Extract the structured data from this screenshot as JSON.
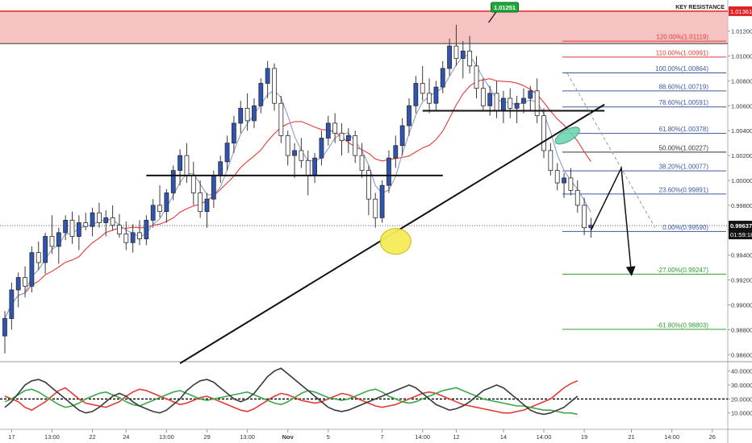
{
  "chart_data": {
    "type": "candlestick",
    "title": "",
    "key_resistance": {
      "label": "KEY RESISTANCE",
      "lower": 1.011,
      "upper": 1.0136,
      "price_label": "1.01361"
    },
    "peak_callout": {
      "value": "1.01251",
      "price": 1.01251
    },
    "current_price": {
      "value": "0.99637",
      "price": 0.99637
    },
    "countdown": "01:59:18",
    "y_axis": {
      "ylim": [
        0.9855,
        1.0145
      ],
      "ticks": [
        "1.01200",
        "1.01000",
        "1.00800",
        "1.00600",
        "1.00400",
        "1.00200",
        "1.00000",
        "0.99800",
        "0.99600",
        "0.99400",
        "0.99200",
        "0.99000",
        "0.98800",
        "0.98600"
      ]
    },
    "x_axis": {
      "ticks": [
        {
          "label": "17",
          "i": 1
        },
        {
          "label": "13:00",
          "i": 7
        },
        {
          "label": "22",
          "i": 13
        },
        {
          "label": "24",
          "i": 18
        },
        {
          "label": "13:00",
          "i": 24
        },
        {
          "label": "29",
          "i": 30
        },
        {
          "label": "13:00",
          "i": 36
        },
        {
          "label": "Nov",
          "i": 42
        },
        {
          "label": "5",
          "i": 48
        },
        {
          "label": "7",
          "i": 56
        },
        {
          "label": "14:00",
          "i": 62
        },
        {
          "label": "12",
          "i": 67
        },
        {
          "label": "14",
          "i": 74
        },
        {
          "label": "14:00",
          "i": 80
        },
        {
          "label": "19",
          "i": 86
        },
        {
          "label": "21",
          "i": 93
        },
        {
          "label": "14:00",
          "i": 99
        },
        {
          "label": "26",
          "i": 105
        }
      ]
    },
    "fibonacci": [
      {
        "label": "120.00%(1.01119)",
        "price": 1.01119,
        "color": "#e53935"
      },
      {
        "label": "110.00%(1.00991)",
        "price": 1.00991,
        "color": "#e53935"
      },
      {
        "label": "100.00%(1.00864)",
        "price": 1.00864,
        "color": "#3d5a9a"
      },
      {
        "label": "88.60%(1.00719)",
        "price": 1.00719,
        "color": "#3d5a9a"
      },
      {
        "label": "78.60%(1.00591)",
        "price": 1.00591,
        "color": "#3d5a9a"
      },
      {
        "label": "61.80%(1.00378)",
        "price": 1.00378,
        "color": "#3d5a9a"
      },
      {
        "label": "50.00%(1.00227)",
        "price": 1.00227,
        "color": "#333333"
      },
      {
        "label": "38.20%(1.00077)",
        "price": 1.00077,
        "color": "#3d5a9a"
      },
      {
        "label": "23.60%(0.99891)",
        "price": 0.99891,
        "color": "#3d5a9a"
      },
      {
        "label": "0.00%(0.99590)",
        "price": 0.9959,
        "color": "#3d5a9a"
      },
      {
        "label": "-27.00%(0.99247)",
        "price": 0.99247,
        "color": "#2e9e2e"
      },
      {
        "label": "-61.80%(0.98803)",
        "price": 0.98803,
        "color": "#2e9e2e"
      }
    ],
    "support_resistance_lines": [
      {
        "price": 1.0004,
        "from_i": 21,
        "to_i": 65
      },
      {
        "price": 1.0056,
        "from_i": 62,
        "to_i": 89
      }
    ],
    "trendline": {
      "from": {
        "i": 26,
        "price": 0.9853
      },
      "to": {
        "i": 89,
        "price": 1.0061
      }
    },
    "candles": [
      {
        "o": 0.9875,
        "h": 0.9895,
        "l": 0.9861,
        "c": 0.9889
      },
      {
        "o": 0.9889,
        "h": 0.9918,
        "l": 0.988,
        "c": 0.9912
      },
      {
        "o": 0.9912,
        "h": 0.9926,
        "l": 0.9898,
        "c": 0.9922
      },
      {
        "o": 0.9922,
        "h": 0.9931,
        "l": 0.9906,
        "c": 0.9915
      },
      {
        "o": 0.9915,
        "h": 0.9947,
        "l": 0.991,
        "c": 0.9942
      },
      {
        "o": 0.9942,
        "h": 0.9951,
        "l": 0.9928,
        "c": 0.9934
      },
      {
        "o": 0.9934,
        "h": 0.9958,
        "l": 0.9925,
        "c": 0.9955
      },
      {
        "o": 0.9955,
        "h": 0.9972,
        "l": 0.9941,
        "c": 0.9947
      },
      {
        "o": 0.9947,
        "h": 0.9962,
        "l": 0.9933,
        "c": 0.9958
      },
      {
        "o": 0.9958,
        "h": 0.9972,
        "l": 0.9952,
        "c": 0.9968
      },
      {
        "o": 0.9968,
        "h": 0.9975,
        "l": 0.9949,
        "c": 0.9955
      },
      {
        "o": 0.9955,
        "h": 0.9972,
        "l": 0.9944,
        "c": 0.9966
      },
      {
        "o": 0.9966,
        "h": 0.9974,
        "l": 0.996,
        "c": 0.9963
      },
      {
        "o": 0.9963,
        "h": 0.9978,
        "l": 0.9955,
        "c": 0.9974
      },
      {
        "o": 0.9974,
        "h": 0.9982,
        "l": 0.9962,
        "c": 0.9966
      },
      {
        "o": 0.9966,
        "h": 0.9976,
        "l": 0.9955,
        "c": 0.997
      },
      {
        "o": 0.997,
        "h": 0.998,
        "l": 0.996,
        "c": 0.9964
      },
      {
        "o": 0.9964,
        "h": 0.9973,
        "l": 0.9954,
        "c": 0.9957
      },
      {
        "o": 0.9957,
        "h": 0.9967,
        "l": 0.9944,
        "c": 0.995
      },
      {
        "o": 0.995,
        "h": 0.9965,
        "l": 0.9942,
        "c": 0.9958
      },
      {
        "o": 0.9958,
        "h": 0.9968,
        "l": 0.9948,
        "c": 0.9953
      },
      {
        "o": 0.9953,
        "h": 0.9972,
        "l": 0.9948,
        "c": 0.9968
      },
      {
        "o": 0.9968,
        "h": 0.9985,
        "l": 0.9962,
        "c": 0.998
      },
      {
        "o": 0.998,
        "h": 0.9996,
        "l": 0.997,
        "c": 0.9975
      },
      {
        "o": 0.9975,
        "h": 0.9993,
        "l": 0.9966,
        "c": 0.999
      },
      {
        "o": 0.999,
        "h": 1.0012,
        "l": 0.9984,
        "c": 1.0008
      },
      {
        "o": 1.0008,
        "h": 1.0025,
        "l": 0.9996,
        "c": 1.002
      },
      {
        "o": 1.002,
        "h": 1.003,
        "l": 0.9998,
        "c": 1.0004
      },
      {
        "o": 1.0004,
        "h": 1.0015,
        "l": 0.998,
        "c": 0.999
      },
      {
        "o": 0.999,
        "h": 1.0,
        "l": 0.997,
        "c": 0.9975
      },
      {
        "o": 0.9975,
        "h": 0.999,
        "l": 0.9962,
        "c": 0.9985
      },
      {
        "o": 0.9985,
        "h": 1.0008,
        "l": 0.9978,
        "c": 1.0004
      },
      {
        "o": 1.0004,
        "h": 1.002,
        "l": 0.9998,
        "c": 1.0015
      },
      {
        "o": 1.0015,
        "h": 1.0036,
        "l": 1.0008,
        "c": 1.003
      },
      {
        "o": 1.003,
        "h": 1.0052,
        "l": 1.0022,
        "c": 1.0046
      },
      {
        "o": 1.0046,
        "h": 1.0064,
        "l": 1.0038,
        "c": 1.0058
      },
      {
        "o": 1.0058,
        "h": 1.007,
        "l": 1.004,
        "c": 1.0048
      },
      {
        "o": 1.0048,
        "h": 1.0066,
        "l": 1.0042,
        "c": 1.006
      },
      {
        "o": 1.006,
        "h": 1.0082,
        "l": 1.0054,
        "c": 1.0078
      },
      {
        "o": 1.0078,
        "h": 1.0096,
        "l": 1.0066,
        "c": 1.009
      },
      {
        "o": 1.009,
        "h": 1.0094,
        "l": 1.0056,
        "c": 1.0062
      },
      {
        "o": 1.0062,
        "h": 1.0068,
        "l": 1.003,
        "c": 1.0036
      },
      {
        "o": 1.0036,
        "h": 1.004,
        "l": 1.0012,
        "c": 1.002
      },
      {
        "o": 1.002,
        "h": 1.003,
        "l": 1.0002,
        "c": 1.0024
      },
      {
        "o": 1.0024,
        "h": 1.0034,
        "l": 1.001,
        "c": 1.0016
      },
      {
        "o": 1.0016,
        "h": 1.0024,
        "l": 0.9988,
        "c": 1.0004
      },
      {
        "o": 1.0004,
        "h": 1.0022,
        "l": 0.9998,
        "c": 1.0018
      },
      {
        "o": 1.0018,
        "h": 1.004,
        "l": 1.0012,
        "c": 1.0034
      },
      {
        "o": 1.0034,
        "h": 1.0052,
        "l": 1.0028,
        "c": 1.0046
      },
      {
        "o": 1.0046,
        "h": 1.0054,
        "l": 1.003,
        "c": 1.0038
      },
      {
        "o": 1.0038,
        "h": 1.0046,
        "l": 1.002,
        "c": 1.0032
      },
      {
        "o": 1.0032,
        "h": 1.0042,
        "l": 1.0022,
        "c": 1.0036
      },
      {
        "o": 1.0036,
        "h": 1.004,
        "l": 1.0014,
        "c": 1.002
      },
      {
        "o": 1.002,
        "h": 1.003,
        "l": 1.0002,
        "c": 1.0008
      },
      {
        "o": 1.0008,
        "h": 1.0012,
        "l": 0.9972,
        "c": 0.9985
      },
      {
        "o": 0.9985,
        "h": 0.999,
        "l": 0.9962,
        "c": 0.997
      },
      {
        "o": 0.997,
        "h": 1.0,
        "l": 0.9966,
        "c": 0.9996
      },
      {
        "o": 0.9996,
        "h": 1.0024,
        "l": 0.999,
        "c": 1.0018
      },
      {
        "o": 1.0018,
        "h": 1.0036,
        "l": 1.001,
        "c": 1.0028
      },
      {
        "o": 1.0028,
        "h": 1.005,
        "l": 1.002,
        "c": 1.0044
      },
      {
        "o": 1.0044,
        "h": 1.0066,
        "l": 1.0036,
        "c": 1.006
      },
      {
        "o": 1.006,
        "h": 1.0084,
        "l": 1.0054,
        "c": 1.0078
      },
      {
        "o": 1.0078,
        "h": 1.0092,
        "l": 1.0064,
        "c": 1.007
      },
      {
        "o": 1.007,
        "h": 1.0082,
        "l": 1.0054,
        "c": 1.0062
      },
      {
        "o": 1.0062,
        "h": 1.008,
        "l": 1.0056,
        "c": 1.0075
      },
      {
        "o": 1.0075,
        "h": 1.0096,
        "l": 1.007,
        "c": 1.009
      },
      {
        "o": 1.009,
        "h": 1.0114,
        "l": 1.0084,
        "c": 1.0108
      },
      {
        "o": 1.0108,
        "h": 1.0125,
        "l": 1.0092,
        "c": 1.0098
      },
      {
        "o": 1.0098,
        "h": 1.0112,
        "l": 1.0082,
        "c": 1.0104
      },
      {
        "o": 1.0104,
        "h": 1.0116,
        "l": 1.0086,
        "c": 1.0092
      },
      {
        "o": 1.0092,
        "h": 1.01,
        "l": 1.0066,
        "c": 1.0074
      },
      {
        "o": 1.0074,
        "h": 1.0082,
        "l": 1.0056,
        "c": 1.006
      },
      {
        "o": 1.006,
        "h": 1.0076,
        "l": 1.0052,
        "c": 1.007
      },
      {
        "o": 1.007,
        "h": 1.008,
        "l": 1.005,
        "c": 1.0056
      },
      {
        "o": 1.0056,
        "h": 1.0072,
        "l": 1.0046,
        "c": 1.0066
      },
      {
        "o": 1.0066,
        "h": 1.0074,
        "l": 1.005,
        "c": 1.0058
      },
      {
        "o": 1.0058,
        "h": 1.0068,
        "l": 1.0046,
        "c": 1.0062
      },
      {
        "o": 1.0062,
        "h": 1.0074,
        "l": 1.0054,
        "c": 1.0066
      },
      {
        "o": 1.0066,
        "h": 1.0076,
        "l": 1.0056,
        "c": 1.0072
      },
      {
        "o": 1.0072,
        "h": 1.0082,
        "l": 1.0046,
        "c": 1.0052
      },
      {
        "o": 1.0052,
        "h": 1.0058,
        "l": 1.0018,
        "c": 1.0024
      },
      {
        "o": 1.0024,
        "h": 1.003,
        "l": 1.0004,
        "c": 1.0008
      },
      {
        "o": 1.0008,
        "h": 1.0014,
        "l": 0.9992,
        "c": 0.9998
      },
      {
        "o": 0.9998,
        "h": 1.0006,
        "l": 0.9986,
        "c": 1.0002
      },
      {
        "o": 1.0002,
        "h": 1.001,
        "l": 0.9988,
        "c": 0.9992
      },
      {
        "o": 0.9992,
        "h": 1.0,
        "l": 0.9974,
        "c": 0.998
      },
      {
        "o": 0.998,
        "h": 0.9986,
        "l": 0.9956,
        "c": 0.9962
      },
      {
        "o": 0.9962,
        "h": 0.997,
        "l": 0.9954,
        "c": 0.9964
      }
    ],
    "oscillator": {
      "ylim": [
        0,
        45
      ],
      "ticks": [
        "40.0000",
        "30.0000",
        "20.0000",
        "10.0000"
      ],
      "reference": 20,
      "series": [
        {
          "color": "#e53935",
          "values": [
            22,
            20,
            18,
            14,
            12,
            15,
            18,
            22,
            26,
            28,
            24,
            20,
            17,
            16,
            15,
            14,
            16,
            18,
            22,
            25,
            27,
            26,
            24,
            22,
            20,
            18,
            16,
            17,
            19,
            21,
            22,
            20,
            18,
            16,
            14,
            12,
            11,
            13,
            16,
            19,
            22,
            24,
            23,
            21,
            19,
            18,
            17,
            18,
            20,
            22,
            24,
            23,
            21,
            19,
            17,
            15,
            14,
            15,
            16,
            18,
            20,
            22,
            24,
            25,
            24,
            22,
            20,
            18,
            16,
            15,
            14,
            13,
            12,
            11,
            10,
            10,
            11,
            12,
            14,
            16,
            18,
            20,
            24,
            28,
            31,
            33
          ]
        },
        {
          "color": "#3aa84a",
          "values": [
            18,
            20,
            23,
            26,
            27,
            25,
            22,
            19,
            16,
            14,
            15,
            17,
            20,
            22,
            24,
            25,
            23,
            21,
            18,
            16,
            15,
            17,
            19,
            21,
            23,
            25,
            26,
            24,
            22,
            20,
            19,
            20,
            21,
            22,
            23,
            24,
            25,
            23,
            21,
            19,
            17,
            16,
            18,
            21,
            24,
            26,
            25,
            23,
            21,
            20,
            19,
            20,
            22,
            24,
            26,
            27,
            25,
            22,
            20,
            18,
            17,
            18,
            20,
            22,
            24,
            26,
            27,
            28,
            26,
            24,
            22,
            20,
            19,
            18,
            17,
            16,
            15,
            15,
            14,
            13,
            12,
            12,
            11,
            10,
            10,
            9
          ]
        },
        {
          "color": "#3a3a3a",
          "values": [
            14,
            18,
            24,
            30,
            33,
            34,
            32,
            28,
            24,
            20,
            16,
            12,
            10,
            11,
            14,
            18,
            22,
            24,
            22,
            18,
            15,
            13,
            11,
            10,
            12,
            16,
            20,
            26,
            30,
            33,
            34,
            32,
            28,
            24,
            20,
            18,
            20,
            24,
            30,
            36,
            40,
            42,
            38,
            34,
            30,
            26,
            22,
            18,
            14,
            12,
            11,
            12,
            14,
            16,
            18,
            20,
            22,
            24,
            26,
            28,
            30,
            28,
            24,
            20,
            16,
            14,
            12,
            13,
            15,
            18,
            22,
            26,
            28,
            30,
            28,
            24,
            20,
            16,
            12,
            10,
            9,
            10,
            12,
            14,
            18,
            22
          ]
        }
      ]
    }
  }
}
